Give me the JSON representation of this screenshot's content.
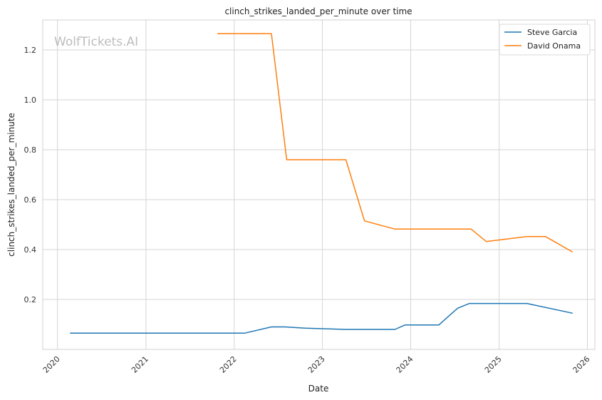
{
  "chart_data": {
    "type": "line",
    "title": "clinch_strikes_landed_per_minute over time",
    "xlabel": "Date",
    "ylabel": "clinch_strikes_landed_per_minute",
    "watermark": "WolfTickets.AI",
    "x_ticks": [
      "2020",
      "2021",
      "2022",
      "2023",
      "2024",
      "2025",
      "2026"
    ],
    "y_ticks": [
      "0.2",
      "0.4",
      "0.6",
      "0.8",
      "1.0",
      "1.2"
    ],
    "xlim": [
      "2019-11-01",
      "2026-02-01"
    ],
    "ylim": [
      0.0,
      1.32
    ],
    "grid": true,
    "legend_position": "top-right",
    "colors": {
      "Steve Garcia": "#1f77b4",
      "David Onama": "#ff7f0e"
    },
    "series": [
      {
        "name": "Steve Garcia",
        "points": [
          [
            "2020-02-22",
            0.065
          ],
          [
            "2022-02-12",
            0.065
          ],
          [
            "2022-06-04",
            0.09
          ],
          [
            "2022-07-30",
            0.09
          ],
          [
            "2022-10-22",
            0.085
          ],
          [
            "2023-04-08",
            0.08
          ],
          [
            "2023-10-28",
            0.08
          ],
          [
            "2023-12-09",
            0.098
          ],
          [
            "2024-04-27",
            0.098
          ],
          [
            "2024-07-13",
            0.165
          ],
          [
            "2024-08-31",
            0.184
          ],
          [
            "2025-04-26",
            0.184
          ],
          [
            "2025-11-01",
            0.145
          ]
        ]
      },
      {
        "name": "David Onama",
        "points": [
          [
            "2021-10-23",
            1.265
          ],
          [
            "2022-06-04",
            1.265
          ],
          [
            "2022-08-06",
            0.76
          ],
          [
            "2023-04-08",
            0.76
          ],
          [
            "2023-06-24",
            0.515
          ],
          [
            "2023-10-28",
            0.482
          ],
          [
            "2024-09-07",
            0.482
          ],
          [
            "2024-11-09",
            0.432
          ],
          [
            "2025-04-26",
            0.452
          ],
          [
            "2025-07-12",
            0.452
          ],
          [
            "2025-11-01",
            0.39
          ]
        ]
      }
    ]
  }
}
